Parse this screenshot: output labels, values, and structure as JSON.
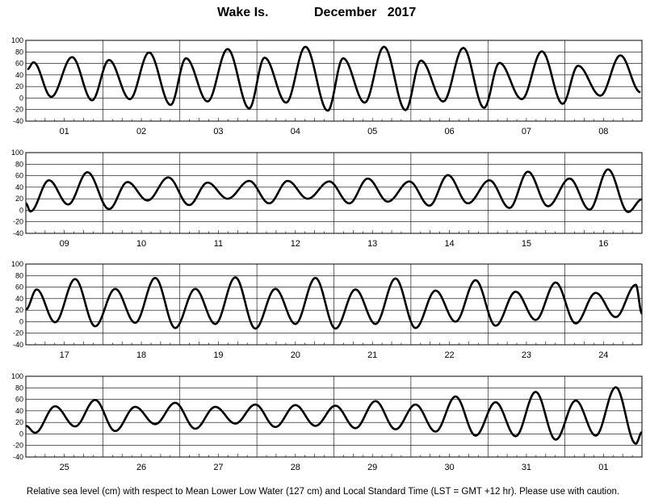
{
  "title_location": "Wake Is.",
  "title_month_year": "December   2017",
  "footnote": "Relative sea level (cm) with respect to Mean Lower Low Water (127 cm) and Local Standard Time (LST = GMT +12 hr). Please use with caution.",
  "colors": {
    "curve": "#000000",
    "grid": "#000000",
    "background": "#ffffff"
  },
  "chart_data": [
    {
      "type": "line",
      "panel": 1,
      "title": "",
      "xlabel": "",
      "ylabel": "",
      "ylim": [
        -40,
        100
      ],
      "yticks": [
        -40,
        -20,
        0,
        20,
        40,
        60,
        80,
        100
      ],
      "day_labels": [
        "01",
        "02",
        "03",
        "04",
        "05",
        "06",
        "07",
        "08"
      ],
      "series": [
        {
          "x": [
            0,
            0.5,
            1,
            1.5,
            2,
            2.5,
            3,
            3.5,
            4,
            4.5,
            5,
            5.5,
            6,
            6.5,
            7,
            7.5,
            8
          ],
          "extrema": [
            [
              0.02,
              50
            ],
            [
              0.1,
              62
            ],
            [
              0.33,
              2
            ],
            [
              0.6,
              71
            ],
            [
              0.86,
              -4
            ],
            [
              1.08,
              66
            ],
            [
              1.35,
              -2
            ],
            [
              1.6,
              79
            ],
            [
              1.88,
              -12
            ],
            [
              2.08,
              69
            ],
            [
              2.36,
              -6
            ],
            [
              2.62,
              85
            ],
            [
              2.9,
              -18
            ],
            [
              3.1,
              70
            ],
            [
              3.38,
              -8
            ],
            [
              3.63,
              89
            ],
            [
              3.92,
              -22
            ],
            [
              4.12,
              69
            ],
            [
              4.4,
              -8
            ],
            [
              4.65,
              89
            ],
            [
              4.93,
              -21
            ],
            [
              5.13,
              65
            ],
            [
              5.42,
              -6
            ],
            [
              5.68,
              87
            ],
            [
              5.95,
              -17
            ],
            [
              6.15,
              61
            ],
            [
              6.44,
              -2
            ],
            [
              6.7,
              81
            ],
            [
              6.97,
              -10
            ],
            [
              7.17,
              56
            ],
            [
              7.46,
              4
            ],
            [
              7.72,
              74
            ],
            [
              7.98,
              10
            ]
          ]
        }
      ]
    },
    {
      "type": "line",
      "panel": 2,
      "title": "",
      "xlabel": "",
      "ylabel": "",
      "ylim": [
        -40,
        100
      ],
      "yticks": [
        -40,
        -20,
        0,
        20,
        40,
        60,
        80,
        100
      ],
      "day_labels": [
        "09",
        "10",
        "11",
        "12",
        "13",
        "14",
        "15",
        "16"
      ],
      "series": [
        {
          "extrema": [
            [
              0.0,
              12
            ],
            [
              0.06,
              -2
            ],
            [
              0.3,
              52
            ],
            [
              0.55,
              10
            ],
            [
              0.8,
              66
            ],
            [
              1.08,
              2
            ],
            [
              1.32,
              49
            ],
            [
              1.58,
              17
            ],
            [
              1.85,
              57
            ],
            [
              2.12,
              9
            ],
            [
              2.36,
              48
            ],
            [
              2.62,
              20
            ],
            [
              2.9,
              51
            ],
            [
              3.16,
              12
            ],
            [
              3.4,
              51
            ],
            [
              3.66,
              20
            ],
            [
              3.94,
              50
            ],
            [
              4.2,
              12
            ],
            [
              4.44,
              55
            ],
            [
              4.7,
              15
            ],
            [
              4.98,
              50
            ],
            [
              5.24,
              8
            ],
            [
              5.48,
              61
            ],
            [
              5.74,
              12
            ],
            [
              6.02,
              52
            ],
            [
              6.28,
              4
            ],
            [
              6.52,
              67
            ],
            [
              6.78,
              7
            ],
            [
              7.06,
              55
            ],
            [
              7.32,
              1
            ],
            [
              7.56,
              71
            ],
            [
              7.82,
              -3
            ],
            [
              8.0,
              19
            ]
          ]
        }
      ]
    },
    {
      "type": "line",
      "panel": 3,
      "title": "",
      "xlabel": "",
      "ylabel": "",
      "ylim": [
        -40,
        100
      ],
      "yticks": [
        -40,
        -20,
        0,
        20,
        40,
        60,
        80,
        100
      ],
      "day_labels": [
        "17",
        "18",
        "19",
        "20",
        "21",
        "22",
        "23",
        "24"
      ],
      "series": [
        {
          "extrema": [
            [
              0.0,
              21
            ],
            [
              0.14,
              56
            ],
            [
              0.38,
              -1
            ],
            [
              0.64,
              74
            ],
            [
              0.9,
              -8
            ],
            [
              1.16,
              57
            ],
            [
              1.42,
              -2
            ],
            [
              1.68,
              76
            ],
            [
              1.94,
              -11
            ],
            [
              2.2,
              57
            ],
            [
              2.46,
              -4
            ],
            [
              2.72,
              77
            ],
            [
              2.98,
              -12
            ],
            [
              3.24,
              57
            ],
            [
              3.5,
              -4
            ],
            [
              3.76,
              76
            ],
            [
              4.02,
              -12
            ],
            [
              4.28,
              56
            ],
            [
              4.54,
              -4
            ],
            [
              4.8,
              75
            ],
            [
              5.06,
              -11
            ],
            [
              5.32,
              54
            ],
            [
              5.58,
              0
            ],
            [
              5.84,
              72
            ],
            [
              6.1,
              -7
            ],
            [
              6.36,
              52
            ],
            [
              6.62,
              3
            ],
            [
              6.88,
              68
            ],
            [
              7.14,
              -3
            ],
            [
              7.4,
              50
            ],
            [
              7.66,
              8
            ],
            [
              7.92,
              64
            ],
            [
              8.0,
              14
            ]
          ]
        }
      ]
    },
    {
      "type": "line",
      "panel": 4,
      "title": "",
      "xlabel": "",
      "ylabel": "",
      "ylim": [
        -40,
        100
      ],
      "yticks": [
        -40,
        -20,
        0,
        20,
        40,
        60,
        80,
        100
      ],
      "day_labels": [
        "25",
        "26",
        "27",
        "28",
        "29",
        "30",
        "31",
        "01"
      ],
      "series": [
        {
          "extrema": [
            [
              0.0,
              14
            ],
            [
              0.12,
              2
            ],
            [
              0.38,
              48
            ],
            [
              0.64,
              13
            ],
            [
              0.9,
              59
            ],
            [
              1.16,
              5
            ],
            [
              1.42,
              47
            ],
            [
              1.68,
              17
            ],
            [
              1.94,
              54
            ],
            [
              2.2,
              9
            ],
            [
              2.46,
              47
            ],
            [
              2.72,
              18
            ],
            [
              2.98,
              51
            ],
            [
              3.24,
              12
            ],
            [
              3.5,
              50
            ],
            [
              3.76,
              14
            ],
            [
              4.02,
              49
            ],
            [
              4.28,
              10
            ],
            [
              4.54,
              57
            ],
            [
              4.8,
              8
            ],
            [
              5.06,
              51
            ],
            [
              5.32,
              4
            ],
            [
              5.58,
              65
            ],
            [
              5.84,
              -3
            ],
            [
              6.1,
              55
            ],
            [
              6.36,
              -4
            ],
            [
              6.62,
              73
            ],
            [
              6.88,
              -10
            ],
            [
              7.14,
              58
            ],
            [
              7.4,
              -3
            ],
            [
              7.66,
              81
            ],
            [
              7.92,
              -17
            ],
            [
              8.0,
              3
            ]
          ]
        }
      ]
    }
  ]
}
